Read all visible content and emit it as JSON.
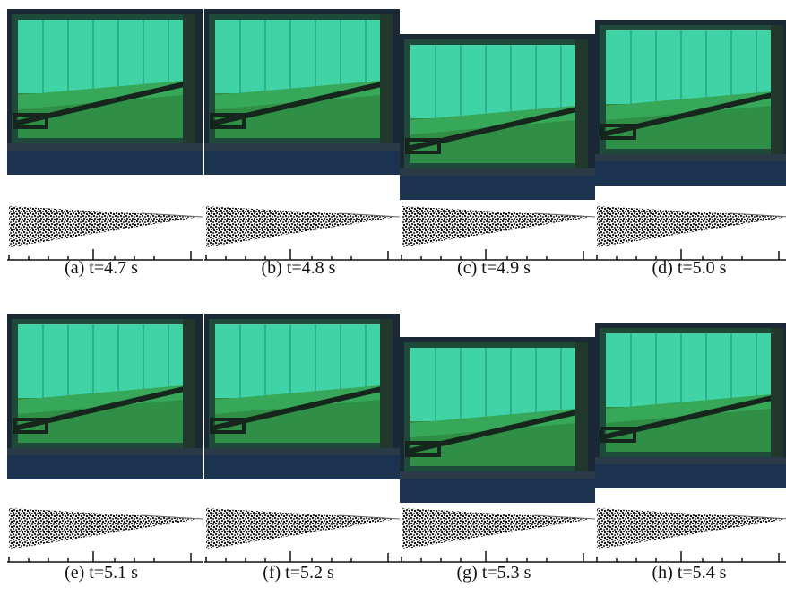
{
  "panels": [
    {
      "caption": "(a) t=4.7 s"
    },
    {
      "caption": "(b) t=4.8 s"
    },
    {
      "caption": "(c) t=4.9 s"
    },
    {
      "caption": "(d) t=5.0 s"
    },
    {
      "caption": "(e) t=5.1 s"
    },
    {
      "caption": "(f) t=5.2 s"
    },
    {
      "caption": "(g) t=5.3 s"
    },
    {
      "caption": "(h) t=5.4 s"
    }
  ]
}
